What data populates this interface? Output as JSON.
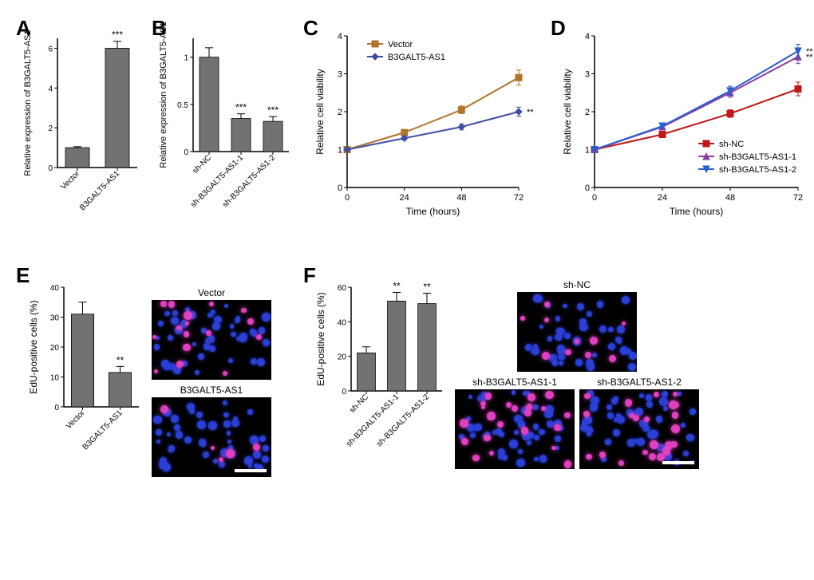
{
  "panels": {
    "A": {
      "label": "A",
      "type": "bar",
      "ylabel": "Relative expression of B3GALT5-AS1",
      "categories": [
        "Vector",
        "B3GALT5-AS1"
      ],
      "values": [
        1.0,
        6.0
      ],
      "errors": [
        0.05,
        0.35
      ],
      "sig": [
        "",
        "***"
      ],
      "ylim": [
        0,
        6.5
      ],
      "ytick_step": 2,
      "bar_color": "#727272",
      "axis_fontsize": 11,
      "tick_fontsize": 10
    },
    "B": {
      "label": "B",
      "type": "bar",
      "ylabel": "Relative expression of B3GALT5-AS1",
      "categories": [
        "sh-NC",
        "sh-B3GALT5-AS1-1",
        "sh-B3GALT5-AS1-2"
      ],
      "values": [
        1.0,
        0.35,
        0.32
      ],
      "errors": [
        0.1,
        0.05,
        0.05
      ],
      "sig": [
        "",
        "***",
        "***"
      ],
      "ylim": [
        0,
        1.2
      ],
      "ytick_step": 0.5,
      "bar_color": "#727272",
      "axis_fontsize": 11,
      "tick_fontsize": 10
    },
    "C": {
      "label": "C",
      "type": "line",
      "xlabel": "Time (hours)",
      "ylabel": "Relative cell viability",
      "x": [
        0,
        24,
        48,
        72
      ],
      "series": [
        {
          "name": "Vector",
          "color": "#b1742b",
          "marker": "square",
          "y": [
            1.0,
            1.45,
            2.05,
            2.9
          ],
          "err": [
            0.04,
            0.05,
            0.1,
            0.2
          ],
          "sig": ""
        },
        {
          "name": "B3GALT5-AS1",
          "color": "#3f4ea3",
          "marker": "diamond",
          "y": [
            1.0,
            1.3,
            1.6,
            2.0
          ],
          "err": [
            0.04,
            0.05,
            0.08,
            0.12
          ],
          "sig": "**"
        }
      ],
      "ylim": [
        0,
        4
      ],
      "ytick_step": 1,
      "xlim": [
        0,
        72
      ],
      "xtick_step": 24,
      "axis_fontsize": 12,
      "tick_fontsize": 11
    },
    "D": {
      "label": "D",
      "type": "line",
      "xlabel": "Time (hours)",
      "ylabel": "Relative cell viability",
      "x": [
        0,
        24,
        48,
        72
      ],
      "series": [
        {
          "name": "sh-NC",
          "color": "#c01818",
          "marker": "square",
          "y": [
            1.0,
            1.4,
            1.95,
            2.6
          ],
          "err": [
            0.04,
            0.06,
            0.1,
            0.18
          ],
          "sig": ""
        },
        {
          "name": "sh-B3GALT5-AS1-1",
          "color": "#8a3aa6",
          "marker": "triangle-up",
          "y": [
            1.0,
            1.6,
            2.5,
            3.45
          ],
          "err": [
            0.04,
            0.06,
            0.12,
            0.18
          ],
          "sig": "**"
        },
        {
          "name": "sh-B3GALT5-AS1-2",
          "color": "#2a5fcf",
          "marker": "triangle-down",
          "y": [
            1.0,
            1.62,
            2.55,
            3.6
          ],
          "err": [
            0.04,
            0.06,
            0.12,
            0.18
          ],
          "sig": "**"
        }
      ],
      "ylim": [
        0,
        4
      ],
      "ytick_step": 1,
      "xlim": [
        0,
        72
      ],
      "xtick_step": 24,
      "axis_fontsize": 12,
      "tick_fontsize": 11
    },
    "E": {
      "label": "E",
      "bar": {
        "type": "bar",
        "ylabel": "EdU-positive cells (%)",
        "categories": [
          "Vector",
          "B3GALT5-AS1"
        ],
        "values": [
          31,
          11.5
        ],
        "errors": [
          4.0,
          2.0
        ],
        "sig": [
          "",
          "**"
        ],
        "ylim": [
          0,
          40
        ],
        "ytick_step": 10,
        "bar_color": "#727272",
        "axis_fontsize": 12,
        "tick_fontsize": 10
      },
      "micrographs": {
        "layout": "stack2",
        "items": [
          {
            "label": "Vector",
            "blue_count": 45,
            "pink_count": 16,
            "show_scalebar": false
          },
          {
            "label": "B3GALT5-AS1",
            "blue_count": 45,
            "pink_count": 5,
            "show_scalebar": true
          }
        ]
      }
    },
    "F": {
      "label": "F",
      "bar": {
        "type": "bar",
        "ylabel": "EdU-positive cells (%)",
        "categories": [
          "sh-NC",
          "sh-B3GALT5-AS1-1",
          "sh-B3GALT5-AS1-2"
        ],
        "values": [
          22,
          52,
          50.5
        ],
        "errors": [
          3.5,
          5.0,
          6.0
        ],
        "sig": [
          "",
          "**",
          "**"
        ],
        "ylim": [
          0,
          60
        ],
        "ytick_step": 20,
        "bar_color": "#727272",
        "axis_fontsize": 12,
        "tick_fontsize": 10
      },
      "micrographs": {
        "layout": "top1-bottom2",
        "items": [
          {
            "label": "sh-NC",
            "blue_count": 45,
            "pink_count": 10,
            "show_scalebar": false
          },
          {
            "label": "sh-B3GALT5-AS1-1",
            "blue_count": 45,
            "pink_count": 23,
            "show_scalebar": false
          },
          {
            "label": "sh-B3GALT5-AS1-2",
            "blue_count": 45,
            "pink_count": 22,
            "show_scalebar": true
          }
        ]
      }
    }
  },
  "colors": {
    "blue_nucleus": "#2a3fd6",
    "pink_nucleus": "#e040c0",
    "scalebar": "#ffffff"
  }
}
